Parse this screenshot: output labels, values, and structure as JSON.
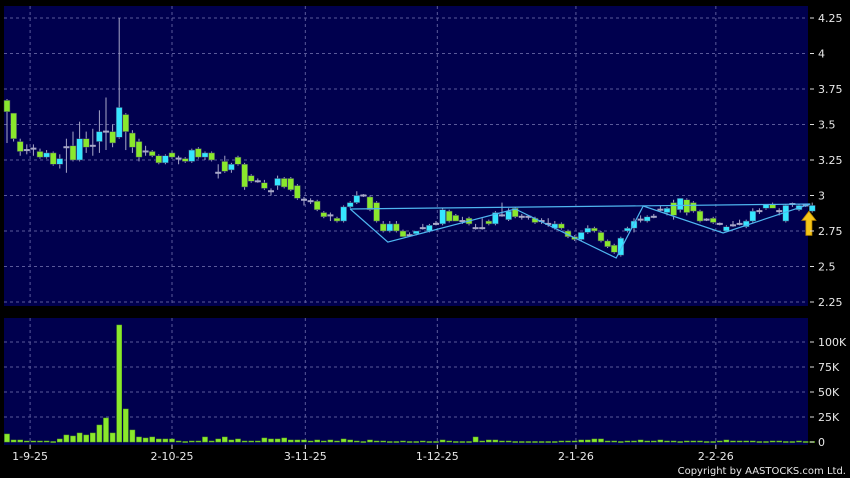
{
  "chart_data": [
    {
      "type": "candlestick",
      "panel": "price",
      "y_ticks": [
        "4.25",
        "4",
        "3.75",
        "3.5",
        "3.25",
        "3",
        "2.75",
        "2.5",
        "2.25"
      ],
      "ylim": [
        2.25,
        4.25
      ],
      "grid": true,
      "colors": {
        "up": "#36e6ff",
        "down": "#8ae82c",
        "wick": "#a8a8c8",
        "background": "#00004e",
        "grid": "#5a5a9a",
        "pattern_line": "#4fb6f0",
        "arrow": "#f5c518"
      },
      "ohlc": [
        [
          3.67,
          3.68,
          3.37,
          3.59
        ],
        [
          3.58,
          3.58,
          3.38,
          3.4
        ],
        [
          3.38,
          3.4,
          3.28,
          3.31
        ],
        [
          3.32,
          3.36,
          3.29,
          3.32
        ],
        [
          3.33,
          3.36,
          3.28,
          3.33
        ],
        [
          3.31,
          3.33,
          3.26,
          3.27
        ],
        [
          3.27,
          3.32,
          3.26,
          3.3
        ],
        [
          3.3,
          3.31,
          3.21,
          3.22
        ],
        [
          3.22,
          3.29,
          3.19,
          3.26
        ],
        [
          3.34,
          3.4,
          3.16,
          3.34
        ],
        [
          3.35,
          3.45,
          3.24,
          3.25
        ],
        [
          3.25,
          3.52,
          3.24,
          3.4
        ],
        [
          3.4,
          3.45,
          3.3,
          3.34
        ],
        [
          3.35,
          3.47,
          3.28,
          3.35
        ],
        [
          3.38,
          3.6,
          3.3,
          3.45
        ],
        [
          3.45,
          3.69,
          3.32,
          3.45
        ],
        [
          3.45,
          3.5,
          3.34,
          3.37
        ],
        [
          3.41,
          4.25,
          3.4,
          3.62
        ],
        [
          3.57,
          3.58,
          3.32,
          3.45
        ],
        [
          3.44,
          3.46,
          3.3,
          3.34
        ],
        [
          3.38,
          3.4,
          3.24,
          3.27
        ],
        [
          3.31,
          3.35,
          3.28,
          3.31
        ],
        [
          3.31,
          3.32,
          3.27,
          3.28
        ],
        [
          3.28,
          3.29,
          3.22,
          3.23
        ],
        [
          3.23,
          3.29,
          3.22,
          3.28
        ],
        [
          3.3,
          3.31,
          3.26,
          3.27
        ],
        [
          3.26,
          3.28,
          3.22,
          3.26
        ],
        [
          3.26,
          3.27,
          3.23,
          3.24
        ],
        [
          3.24,
          3.33,
          3.23,
          3.32
        ],
        [
          3.33,
          3.34,
          3.26,
          3.27
        ],
        [
          3.27,
          3.31,
          3.25,
          3.3
        ],
        [
          3.3,
          3.31,
          3.24,
          3.25
        ],
        [
          3.16,
          3.22,
          3.12,
          3.16
        ],
        [
          3.24,
          3.28,
          3.16,
          3.17
        ],
        [
          3.18,
          3.23,
          3.16,
          3.22
        ],
        [
          3.27,
          3.28,
          3.21,
          3.22
        ],
        [
          3.22,
          3.23,
          3.04,
          3.06
        ],
        [
          3.14,
          3.15,
          3.09,
          3.1
        ],
        [
          3.1,
          3.12,
          3.09,
          3.1
        ],
        [
          3.09,
          3.11,
          3.04,
          3.05
        ],
        [
          3.03,
          3.05,
          3.0,
          3.03
        ],
        [
          3.07,
          3.14,
          3.04,
          3.12
        ],
        [
          3.12,
          3.13,
          3.05,
          3.06
        ],
        [
          3.12,
          3.13,
          3.03,
          3.04
        ],
        [
          3.07,
          3.08,
          2.97,
          2.98
        ],
        [
          2.97,
          2.99,
          2.93,
          2.97
        ],
        [
          2.96,
          2.98,
          2.94,
          2.96
        ],
        [
          2.96,
          2.97,
          2.89,
          2.9
        ],
        [
          2.88,
          2.89,
          2.84,
          2.85
        ],
        [
          2.86,
          2.88,
          2.82,
          2.86
        ],
        [
          2.84,
          2.85,
          2.81,
          2.82
        ],
        [
          2.82,
          2.93,
          2.81,
          2.92
        ],
        [
          2.92,
          2.96,
          2.91,
          2.95
        ],
        [
          2.95,
          3.03,
          2.94,
          3.0
        ],
        [
          3.0,
          3.01,
          2.99,
          3.0
        ],
        [
          2.99,
          3.0,
          2.89,
          2.9
        ],
        [
          2.95,
          2.96,
          2.81,
          2.82
        ],
        [
          2.8,
          2.82,
          2.74,
          2.75
        ],
        [
          2.75,
          2.82,
          2.74,
          2.8
        ],
        [
          2.8,
          2.82,
          2.74,
          2.75
        ],
        [
          2.75,
          2.76,
          2.71,
          2.71
        ],
        [
          2.72,
          2.74,
          2.71,
          2.72
        ],
        [
          2.73,
          2.75,
          2.72,
          2.75
        ],
        [
          2.77,
          2.8,
          2.76,
          2.77
        ],
        [
          2.75,
          2.8,
          2.74,
          2.79
        ],
        [
          2.8,
          2.82,
          2.79,
          2.8
        ],
        [
          2.8,
          2.91,
          2.79,
          2.9
        ],
        [
          2.89,
          2.9,
          2.81,
          2.82
        ],
        [
          2.86,
          2.87,
          2.82,
          2.82
        ],
        [
          2.82,
          2.85,
          2.8,
          2.82
        ],
        [
          2.84,
          2.85,
          2.79,
          2.8
        ],
        [
          2.77,
          2.8,
          2.76,
          2.77
        ],
        [
          2.77,
          2.84,
          2.76,
          2.77
        ],
        [
          2.82,
          2.83,
          2.79,
          2.8
        ],
        [
          2.8,
          2.89,
          2.79,
          2.88
        ],
        [
          2.86,
          2.95,
          2.85,
          2.86
        ],
        [
          2.83,
          2.91,
          2.82,
          2.89
        ],
        [
          2.91,
          2.92,
          2.84,
          2.85
        ],
        [
          2.85,
          2.87,
          2.83,
          2.85
        ],
        [
          2.85,
          2.86,
          2.83,
          2.85
        ],
        [
          2.84,
          2.85,
          2.8,
          2.81
        ],
        [
          2.82,
          2.84,
          2.8,
          2.82
        ],
        [
          2.8,
          2.84,
          2.78,
          2.8
        ],
        [
          2.77,
          2.82,
          2.76,
          2.8
        ],
        [
          2.8,
          2.81,
          2.76,
          2.77
        ],
        [
          2.75,
          2.76,
          2.7,
          2.71
        ],
        [
          2.71,
          2.72,
          2.68,
          2.69
        ],
        [
          2.69,
          2.74,
          2.68,
          2.74
        ],
        [
          2.74,
          2.79,
          2.73,
          2.77
        ],
        [
          2.77,
          2.78,
          2.74,
          2.75
        ],
        [
          2.74,
          2.75,
          2.67,
          2.68
        ],
        [
          2.68,
          2.69,
          2.63,
          2.64
        ],
        [
          2.65,
          2.66,
          2.59,
          2.6
        ],
        [
          2.58,
          2.71,
          2.57,
          2.7
        ],
        [
          2.75,
          2.78,
          2.74,
          2.77
        ],
        [
          2.77,
          2.84,
          2.74,
          2.82
        ],
        [
          2.83,
          2.86,
          2.81,
          2.83
        ],
        [
          2.82,
          2.86,
          2.81,
          2.85
        ],
        [
          2.85,
          2.87,
          2.84,
          2.85
        ],
        [
          2.9,
          2.93,
          2.89,
          2.9
        ],
        [
          2.88,
          2.92,
          2.86,
          2.91
        ],
        [
          2.95,
          2.97,
          2.83,
          2.86
        ],
        [
          2.9,
          2.98,
          2.88,
          2.98
        ],
        [
          2.97,
          2.98,
          2.86,
          2.88
        ],
        [
          2.95,
          2.96,
          2.88,
          2.89
        ],
        [
          2.89,
          2.9,
          2.81,
          2.82
        ],
        [
          2.83,
          2.84,
          2.82,
          2.83
        ],
        [
          2.84,
          2.85,
          2.8,
          2.81
        ],
        [
          2.8,
          2.81,
          2.79,
          2.8
        ],
        [
          2.75,
          2.79,
          2.74,
          2.78
        ],
        [
          2.79,
          2.82,
          2.78,
          2.79
        ],
        [
          2.8,
          2.83,
          2.79,
          2.8
        ],
        [
          2.78,
          2.83,
          2.77,
          2.82
        ],
        [
          2.82,
          2.91,
          2.81,
          2.89
        ],
        [
          2.89,
          2.91,
          2.87,
          2.89
        ],
        [
          2.91,
          2.94,
          2.9,
          2.94
        ],
        [
          2.94,
          2.95,
          2.91,
          2.91
        ],
        [
          2.89,
          2.91,
          2.86,
          2.89
        ],
        [
          2.82,
          2.94,
          2.81,
          2.93
        ],
        [
          2.94,
          2.95,
          2.92,
          2.94
        ],
        [
          2.9,
          2.94,
          2.89,
          2.93
        ],
        [
          2.93,
          2.94,
          2.92,
          2.93
        ],
        [
          2.89,
          2.95,
          2.88,
          2.93
        ]
      ],
      "pattern_lines": [
        [
          [
            52,
            2.905
          ],
          [
            121.7,
            2.94
          ]
        ],
        [
          [
            52,
            2.905
          ],
          [
            57.7,
            2.672
          ],
          [
            77,
            2.905
          ],
          [
            92.3,
            2.56
          ],
          [
            96.4,
            2.926
          ],
          [
            108.5,
            2.736
          ],
          [
            121.7,
            2.94
          ]
        ]
      ],
      "signal_arrow": {
        "direction": "up",
        "candle": 121.5,
        "price": 2.79
      }
    },
    {
      "type": "bar",
      "panel": "volume",
      "y_ticks": [
        "100K",
        "75K",
        "50K",
        "25K",
        "0"
      ],
      "ylim": [
        0,
        120
      ],
      "grid": true,
      "unit": "K",
      "values": [
        8,
        2,
        2,
        1,
        1,
        1,
        1,
        0.5,
        3,
        7,
        6,
        9,
        7,
        9,
        17,
        24,
        9,
        117,
        33,
        12,
        5,
        4,
        5,
        3,
        3,
        3,
        1,
        0.5,
        1,
        1,
        5,
        1,
        3,
        5,
        2,
        3,
        1,
        1,
        1,
        4,
        3,
        3,
        4,
        2,
        2,
        2,
        1,
        2,
        1,
        2,
        1,
        3,
        2,
        1,
        0.5,
        2,
        1,
        1,
        0.5,
        0.5,
        1,
        0.5,
        0.5,
        1,
        0.5,
        0.5,
        2,
        1,
        0.5,
        0.5,
        0.5,
        5,
        1,
        2,
        2,
        1,
        1,
        0.5,
        0.5,
        0.5,
        0.5,
        0.5,
        0.5,
        0.5,
        1,
        1,
        1,
        2,
        2,
        3,
        3,
        1,
        1,
        0.5,
        1,
        1,
        2,
        1,
        1,
        2,
        1,
        1,
        0.5,
        1,
        1,
        1,
        0.5,
        0.5,
        1,
        2,
        1,
        1,
        1,
        1,
        0.5,
        0.5,
        1,
        1,
        0.5,
        0.5,
        1,
        0.5,
        0.5
      ]
    }
  ],
  "x_axis": {
    "tick_labels": [
      "1-9-25",
      "2-10-25",
      "3-11-25",
      "1-12-25",
      "2-1-26",
      "2-2-26"
    ],
    "tick_candle_index": [
      3.5,
      25,
      45.2,
      65.2,
      86.2,
      107.4
    ]
  },
  "copyright": "Copyright by AASTOCKS.com Ltd."
}
